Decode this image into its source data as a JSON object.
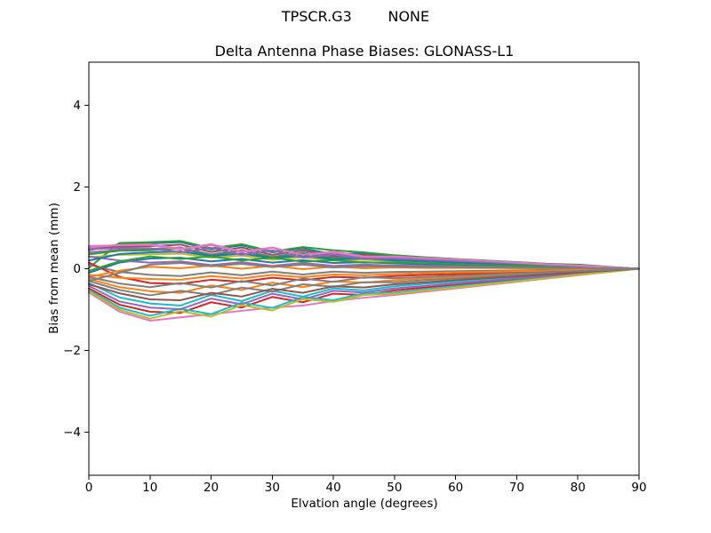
{
  "chart_data": {
    "type": "line",
    "suptitle": "TPSCR.G3        NONE",
    "title": "Delta Antenna Phase Biases: GLONASS-L1",
    "xlabel": "Elvation angle (degrees)",
    "ylabel": "Bias from mean (mm)",
    "xlim": [
      0,
      90
    ],
    "ylim": [
      -5.05,
      5.05
    ],
    "xticks": [
      0,
      10,
      20,
      30,
      40,
      50,
      60,
      70,
      80,
      90
    ],
    "yticks": [
      -4,
      -2,
      0,
      2,
      4
    ],
    "grid": false,
    "legend": "none",
    "line_width": 2,
    "x": [
      0,
      5,
      10,
      15,
      20,
      25,
      30,
      35,
      40,
      45,
      50,
      55,
      60,
      65,
      70,
      75,
      80,
      85,
      90
    ],
    "series": [
      {
        "color": "#1f77b4",
        "values": [
          0.45,
          0.6,
          0.62,
          0.65,
          0.47,
          0.57,
          0.4,
          0.5,
          0.35,
          0.38,
          0.31,
          0.27,
          0.23,
          0.19,
          0.16,
          0.12,
          0.08,
          0.04,
          0.0
        ]
      },
      {
        "color": "#d62728",
        "values": [
          -0.48,
          -0.88,
          -1.05,
          -1.08,
          -0.82,
          -0.95,
          -0.69,
          -0.82,
          -0.61,
          -0.64,
          -0.53,
          -0.46,
          -0.39,
          -0.33,
          -0.26,
          -0.2,
          -0.13,
          -0.07,
          0.0
        ]
      },
      {
        "color": "#2ca02c",
        "values": [
          0.02,
          0.63,
          0.65,
          0.68,
          0.5,
          0.6,
          0.42,
          0.53,
          0.45,
          0.4,
          0.33,
          0.28,
          0.24,
          0.2,
          0.16,
          0.12,
          0.1,
          0.05,
          0.0
        ]
      },
      {
        "color": "#ff7f0e",
        "values": [
          -0.25,
          -0.45,
          -0.55,
          -0.59,
          -0.41,
          -0.52,
          -0.34,
          -0.45,
          -0.31,
          -0.34,
          -0.28,
          -0.24,
          -0.21,
          -0.17,
          -0.14,
          -0.1,
          -0.07,
          -0.03,
          0.0
        ]
      },
      {
        "color": "#9467bd",
        "values": [
          0.4,
          0.46,
          0.48,
          0.52,
          0.35,
          0.46,
          0.29,
          0.4,
          0.27,
          0.31,
          0.24,
          0.21,
          0.18,
          0.15,
          0.12,
          0.09,
          0.06,
          0.03,
          0.0
        ]
      },
      {
        "color": "#e377c2",
        "values": [
          -0.58,
          -1.05,
          -1.27,
          -1.19,
          -1.11,
          -1.03,
          -0.95,
          -0.9,
          -0.79,
          -0.71,
          -0.64,
          -0.56,
          -0.48,
          -0.4,
          -0.32,
          -0.24,
          -0.16,
          -0.08,
          0.0
        ]
      },
      {
        "color": "#8c564b",
        "values": [
          0.5,
          0.54,
          0.55,
          0.59,
          0.41,
          0.52,
          0.34,
          0.45,
          0.31,
          0.34,
          0.28,
          0.24,
          0.21,
          0.17,
          0.14,
          0.1,
          0.07,
          0.03,
          0.0
        ]
      },
      {
        "color": "#7f7f7f",
        "values": [
          0.1,
          -0.08,
          -0.15,
          -0.18,
          -0.09,
          -0.16,
          -0.07,
          -0.14,
          -0.07,
          -0.1,
          -0.08,
          -0.07,
          -0.06,
          -0.05,
          -0.04,
          -0.03,
          -0.02,
          -0.01,
          0.0
        ]
      },
      {
        "color": "#bcbd22",
        "values": [
          0.28,
          0.34,
          0.35,
          0.37,
          0.27,
          0.32,
          0.22,
          0.28,
          0.2,
          0.22,
          0.18,
          0.15,
          0.13,
          0.11,
          0.09,
          0.07,
          0.04,
          0.02,
          0.0
        ]
      },
      {
        "color": "#17becf",
        "values": [
          -0.35,
          -0.7,
          -0.85,
          -0.9,
          -0.64,
          -0.79,
          -0.54,
          -0.68,
          -0.48,
          -0.53,
          -0.43,
          -0.37,
          -0.32,
          -0.27,
          -0.21,
          -0.16,
          -0.11,
          -0.05,
          0.0
        ]
      },
      {
        "color": "#1f77b4",
        "values": [
          -0.1,
          0.15,
          0.25,
          0.27,
          0.18,
          0.24,
          0.15,
          0.21,
          0.14,
          0.16,
          0.13,
          0.11,
          0.09,
          0.08,
          0.06,
          0.05,
          0.03,
          0.02,
          0.0
        ]
      },
      {
        "color": "#17becf",
        "values": [
          -0.52,
          -0.95,
          -1.15,
          -0.98,
          -1.11,
          -0.83,
          -0.96,
          -0.69,
          -0.77,
          -0.6,
          -0.58,
          -0.5,
          -0.43,
          -0.36,
          -0.29,
          -0.22,
          -0.14,
          -0.07,
          0.0
        ]
      },
      {
        "color": "#2ca02c",
        "values": [
          0.35,
          0.44,
          0.45,
          0.49,
          0.32,
          0.44,
          0.27,
          0.38,
          0.25,
          0.29,
          0.23,
          0.2,
          0.17,
          0.14,
          0.11,
          0.08,
          0.06,
          0.03,
          0.0
        ]
      },
      {
        "color": "#d62728",
        "values": [
          0.15,
          -0.2,
          -0.35,
          -0.37,
          -0.27,
          -0.32,
          -0.22,
          -0.28,
          -0.2,
          -0.22,
          -0.18,
          -0.15,
          -0.13,
          -0.11,
          -0.09,
          -0.07,
          -0.04,
          -0.02,
          0.0
        ]
      },
      {
        "color": "#9467bd",
        "values": [
          0.3,
          0.2,
          0.15,
          0.18,
          0.09,
          0.16,
          0.07,
          0.14,
          0.07,
          0.1,
          0.08,
          0.07,
          0.06,
          0.05,
          0.04,
          0.03,
          0.02,
          0.01,
          0.0
        ]
      },
      {
        "color": "#9467bd",
        "values": [
          -0.42,
          -0.8,
          -0.95,
          -0.99,
          -0.73,
          -0.87,
          -0.61,
          -0.75,
          -0.54,
          -0.58,
          -0.48,
          -0.42,
          -0.36,
          -0.3,
          -0.24,
          -0.18,
          -0.12,
          -0.06,
          0.0
        ]
      },
      {
        "color": "#e377c2",
        "values": [
          0.56,
          0.57,
          0.58,
          0.47,
          0.58,
          0.4,
          0.51,
          0.33,
          0.4,
          0.29,
          0.29,
          0.25,
          0.22,
          0.18,
          0.15,
          0.11,
          0.07,
          0.04,
          0.0
        ]
      },
      {
        "color": "#7f7f7f",
        "values": [
          -0.3,
          -0.52,
          -0.65,
          -0.54,
          -0.64,
          -0.46,
          -0.56,
          -0.38,
          -0.44,
          -0.33,
          -0.33,
          -0.28,
          -0.24,
          -0.2,
          -0.16,
          -0.12,
          -0.08,
          -0.04,
          0.0
        ]
      },
      {
        "color": "#ff7f0e",
        "values": [
          -0.2,
          -0.05,
          0.05,
          0.01,
          0.08,
          0.0,
          0.07,
          -0.01,
          0.05,
          0.01,
          0.03,
          0.02,
          0.02,
          0.02,
          0.01,
          0.01,
          0.01,
          0.0,
          0.0
        ]
      },
      {
        "color": "#bcbd22",
        "values": [
          -0.55,
          -1.0,
          -1.22,
          -1.04,
          -1.17,
          -0.89,
          -1.02,
          -0.74,
          -0.81,
          -0.64,
          -0.61,
          -0.53,
          -0.46,
          -0.38,
          -0.31,
          -0.23,
          -0.15,
          -0.08,
          0.0
        ]
      },
      {
        "color": "#1f77b4",
        "values": [
          0.2,
          0.36,
          0.4,
          0.42,
          0.31,
          0.37,
          0.26,
          0.32,
          0.23,
          0.25,
          0.2,
          0.18,
          0.15,
          0.13,
          0.1,
          0.08,
          0.05,
          0.03,
          0.0
        ]
      },
      {
        "color": "#ff7f0e",
        "values": [
          -0.15,
          -0.22,
          -0.25,
          -0.27,
          -0.18,
          -0.24,
          -0.15,
          -0.21,
          -0.14,
          -0.16,
          -0.13,
          -0.11,
          -0.09,
          -0.08,
          -0.06,
          -0.05,
          -0.03,
          -0.02,
          0.0
        ]
      },
      {
        "color": "#2ca02c",
        "values": [
          -0.05,
          0.18,
          0.3,
          0.24,
          0.3,
          0.2,
          0.27,
          0.17,
          0.21,
          0.15,
          0.15,
          0.13,
          0.11,
          0.09,
          0.08,
          0.06,
          0.04,
          0.02,
          0.0
        ]
      },
      {
        "color": "#8c564b",
        "values": [
          -0.38,
          -0.6,
          -0.75,
          -0.77,
          -0.59,
          -0.68,
          -0.49,
          -0.59,
          -0.43,
          -0.46,
          -0.38,
          -0.33,
          -0.28,
          -0.23,
          -0.19,
          -0.14,
          -0.09,
          -0.05,
          0.0
        ]
      },
      {
        "color": "#9467bd",
        "values": [
          0.48,
          0.5,
          0.5,
          0.4,
          0.51,
          0.34,
          0.45,
          0.27,
          0.35,
          0.24,
          0.25,
          0.22,
          0.19,
          0.16,
          0.13,
          0.09,
          0.06,
          0.03,
          0.0
        ]
      },
      {
        "color": "#7f7f7f",
        "values": [
          -0.2,
          -0.36,
          -0.45,
          -0.35,
          -0.46,
          -0.3,
          -0.41,
          -0.24,
          -0.32,
          -0.21,
          -0.23,
          -0.2,
          -0.17,
          -0.14,
          -0.11,
          -0.08,
          -0.06,
          -0.03,
          0.0
        ]
      },
      {
        "color": "#e377c2",
        "values": [
          0.52,
          0.58,
          0.6,
          0.49,
          0.6,
          0.42,
          0.52,
          0.34,
          0.42,
          0.3,
          0.3,
          0.26,
          0.23,
          0.19,
          0.15,
          0.11,
          0.08,
          0.04,
          0.0
        ]
      },
      {
        "color": "#7f7f7f",
        "values": [
          -0.3,
          -0.1,
          0.1,
          0.14,
          0.06,
          0.12,
          0.04,
          0.1,
          0.03,
          0.06,
          0.05,
          0.04,
          0.04,
          0.03,
          0.03,
          0.02,
          0.01,
          0.01,
          0.0
        ]
      }
    ]
  }
}
